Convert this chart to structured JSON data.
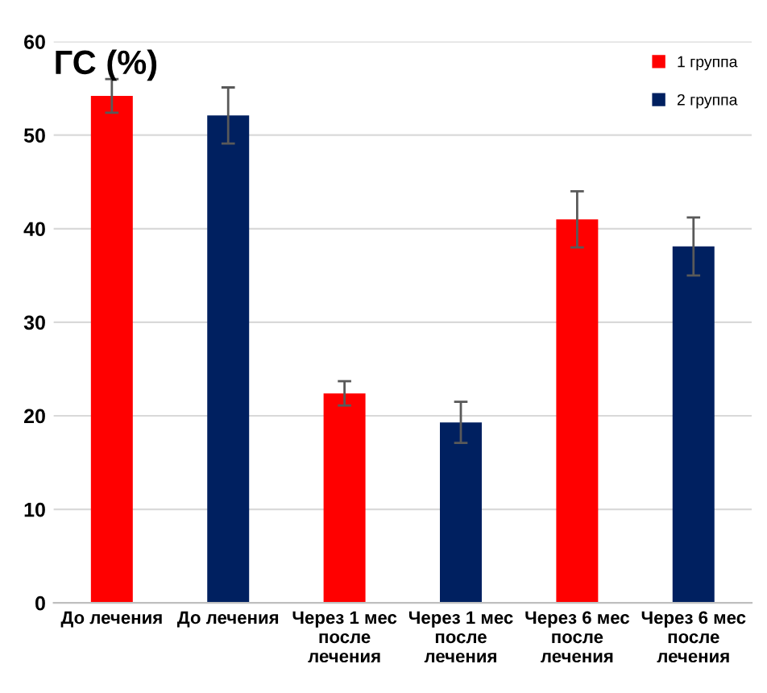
{
  "chart_data": {
    "type": "bar",
    "title": "ГС (%)",
    "categories": [
      "До лечения",
      "До лечения",
      "Через 1 мес\nпосле\nлечения",
      "Через 1 мес\nпосле\nлечения",
      "Через 6 мес\nпосле\nлечения",
      "Через 6 мес\nпосле\nлечения"
    ],
    "series": [
      {
        "name": "1 группа",
        "color": "#ff0000",
        "values": [
          54.2,
          null,
          22.4,
          null,
          41.0,
          null
        ],
        "errors": [
          1.8,
          null,
          1.3,
          null,
          3,
          null
        ]
      },
      {
        "name": "2 группа",
        "color": "#002060",
        "values": [
          null,
          52.1,
          null,
          19.3,
          null,
          38.1
        ],
        "errors": [
          null,
          3,
          null,
          2.2,
          null,
          3.1
        ]
      }
    ],
    "ylim": [
      0,
      60
    ],
    "yticks": [
      0,
      10,
      20,
      30,
      40,
      50,
      60
    ],
    "grid": "y",
    "legend": "top right"
  }
}
